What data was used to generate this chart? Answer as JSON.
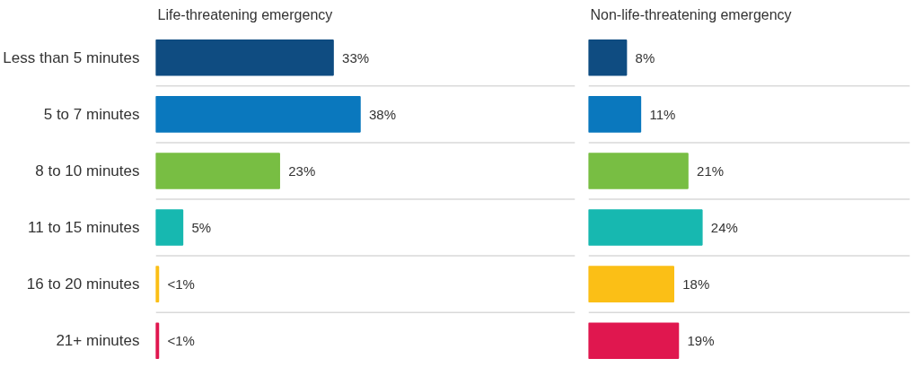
{
  "chart_data": [
    {
      "type": "bar",
      "orientation": "horizontal",
      "title": "Life-threatening emergency",
      "categories": [
        "Less than 5 minutes",
        "5 to 7 minutes",
        "8 to 10 minutes",
        "11 to 15 minutes",
        "16 to 20 minutes",
        "21+ minutes"
      ],
      "values": [
        33,
        38,
        23,
        5,
        0.5,
        0.5
      ],
      "value_labels": [
        "33%",
        "38%",
        "23%",
        "5%",
        "<1%",
        "<1%"
      ],
      "colors": [
        "#0f4c81",
        "#0a78be",
        "#78be43",
        "#17b8b0",
        "#fbbf16",
        "#e0174f"
      ],
      "xlim": [
        0,
        78
      ],
      "tick_labels": "y",
      "grid": false
    },
    {
      "type": "bar",
      "orientation": "horizontal",
      "title": "Non-life-threatening emergency",
      "categories": [
        null,
        null,
        null,
        null,
        null,
        null
      ],
      "values": [
        8,
        11,
        21,
        24,
        18,
        19
      ],
      "value_labels": [
        "8%",
        "11%",
        "21%",
        "24%",
        "18%",
        "19%"
      ],
      "colors": [
        "#0f4c81",
        "#0a78be",
        "#78be43",
        "#17b8b0",
        "#fbbf16",
        "#e0174f"
      ],
      "xlim": [
        0,
        68
      ],
      "tick_labels": false,
      "grid": false
    }
  ]
}
